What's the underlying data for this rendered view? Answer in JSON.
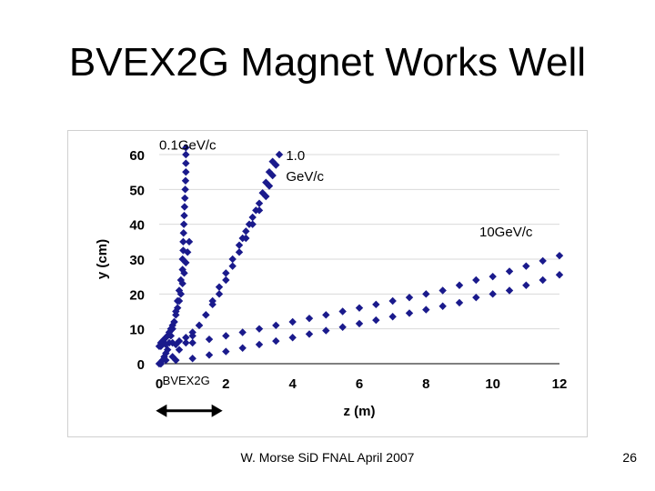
{
  "slide": {
    "title": "BVEX2G Magnet Works Well",
    "footer": "W. Morse SiD FNAL April 2007",
    "page_number": "26"
  },
  "colors": {
    "marker": "#1a1a8c",
    "grid": "#d9d9d9",
    "axis": "#000000"
  },
  "chart_data": {
    "type": "scatter",
    "title": "",
    "xlabel": "z (m)",
    "ylabel": "y (cm)",
    "xlim": [
      0,
      12
    ],
    "ylim": [
      0,
      60
    ],
    "xticks": [
      0,
      2,
      4,
      6,
      8,
      10,
      12
    ],
    "yticks": [
      0,
      10,
      20,
      30,
      40,
      50,
      60
    ],
    "grid": "horizontal",
    "legend": "none",
    "marker": "diamond",
    "annotations": [
      {
        "text": "0.1Ge​V/c",
        "x": 0.0,
        "y": 61.5
      },
      {
        "text": "1.0",
        "x": 3.8,
        "y": 58.5
      },
      {
        "text": "Ge​V/c",
        "x": 3.8,
        "y": 52.5
      },
      {
        "text": "10Ge​V/c",
        "x": 9.6,
        "y": 36.5
      },
      {
        "text": "BVEX2G",
        "x": 0.1,
        "y": -6
      }
    ],
    "series": [
      {
        "x": [
          0.05,
          0.1,
          0.15,
          0.2,
          0.25,
          0.3,
          0.35,
          0.4,
          0.45,
          0.5,
          0.55,
          0.6,
          0.65,
          0.7,
          0.7,
          0.72,
          0.72,
          0.73,
          0.74,
          0.75,
          0.76,
          0.77,
          0.78,
          0.79,
          0.8,
          0.8,
          0.8,
          0.8
        ],
        "y": [
          0,
          1,
          2,
          3,
          4,
          6,
          8,
          10,
          12,
          15,
          18,
          21,
          24,
          27,
          30,
          32.5,
          35,
          37.5,
          40,
          42.5,
          45,
          47.5,
          50,
          52.5,
          55,
          57.5,
          60,
          62
        ]
      },
      {
        "x": [
          0.05,
          0.1,
          0.15,
          0.2,
          0.25,
          0.3,
          0.35,
          0.4,
          0.45,
          0.5,
          0.55,
          0.6,
          0.65,
          0.7,
          0.75,
          0.8,
          0.85,
          0.9
        ],
        "y": [
          6,
          6.5,
          7,
          7.5,
          8,
          9,
          10,
          11,
          12,
          14,
          16,
          18,
          20,
          23,
          26,
          29,
          32,
          35
        ]
      },
      {
        "x": [
          0.05,
          0.2,
          0.4,
          0.6,
          0.8,
          1.0,
          1.2,
          1.4,
          1.6,
          1.8,
          2.0,
          2.2,
          2.4,
          2.5,
          2.6,
          2.7,
          2.8,
          2.9,
          3.0,
          3.1,
          3.2,
          3.3,
          3.4
        ],
        "y": [
          0,
          1,
          2,
          4,
          6,
          8,
          11,
          14,
          18,
          22,
          26,
          30,
          34,
          36,
          38,
          40,
          42,
          44,
          46,
          49,
          52,
          55,
          58
        ]
      },
      {
        "x": [
          0.05,
          0.2,
          0.4,
          0.6,
          0.8,
          1.0,
          1.2,
          1.4,
          1.6,
          1.8,
          2.0,
          2.2,
          2.4,
          2.6,
          2.8,
          3.0,
          3.2,
          3.3,
          3.4,
          3.5,
          3.6
        ],
        "y": [
          5,
          5.5,
          6,
          6.5,
          7.5,
          9,
          11,
          14,
          17,
          20,
          24,
          28,
          32,
          36,
          40,
          44,
          48,
          51,
          54,
          57,
          60
        ]
      },
      {
        "x": [
          0,
          0.5,
          1,
          1.5,
          2,
          2.5,
          3,
          3.5,
          4,
          4.5,
          5,
          5.5,
          6,
          6.5,
          7,
          7.5,
          8,
          8.5,
          9,
          9.5,
          10,
          10.5,
          11,
          11.5,
          12
        ],
        "y": [
          0,
          1,
          1.5,
          2.5,
          3.5,
          4.5,
          5.5,
          6.5,
          7.5,
          8.5,
          9.5,
          10.5,
          11.5,
          12.5,
          13.5,
          14.5,
          15.5,
          16.5,
          17.5,
          19,
          20,
          21,
          22.5,
          24,
          25.5
        ]
      },
      {
        "x": [
          0,
          0.5,
          1,
          1.5,
          2,
          2.5,
          3,
          3.5,
          4,
          4.5,
          5,
          5.5,
          6,
          6.5,
          7,
          7.5,
          8,
          8.5,
          9,
          9.5,
          10,
          10.5,
          11,
          11.5,
          12
        ],
        "y": [
          5,
          5.5,
          6,
          7,
          8,
          9,
          10,
          11,
          12,
          13,
          14,
          15,
          16,
          17,
          18,
          19,
          20,
          21,
          22.5,
          24,
          25,
          26.5,
          28,
          29.5,
          31
        ]
      }
    ]
  }
}
